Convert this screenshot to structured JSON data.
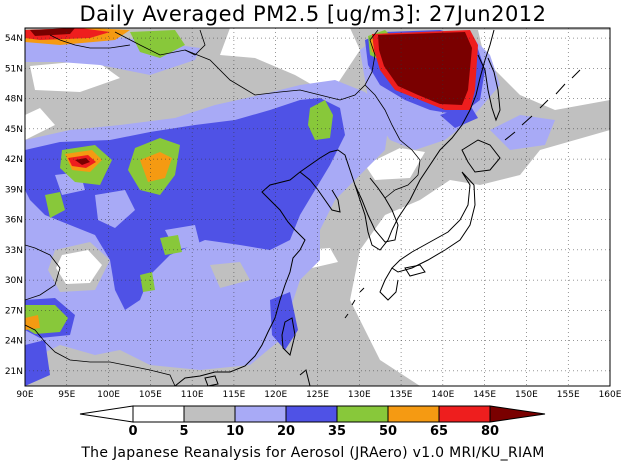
{
  "title": "Daily Averaged PM2.5 [ug/m3]: 27Jun2012",
  "footer": "The Japanese Reanalysis for Aerosol (JRAero) v1.0 MRI/KU_RIAM",
  "map": {
    "lon_range": [
      90,
      160
    ],
    "lat_range": [
      19.5,
      55
    ],
    "lon_ticks": [
      "90E",
      "95E",
      "100E",
      "105E",
      "110E",
      "115E",
      "120E",
      "125E",
      "130E",
      "135E",
      "140E",
      "145E",
      "150E",
      "155E",
      "160E"
    ],
    "lat_ticks": [
      "21N",
      "24N",
      "27N",
      "30N",
      "33N",
      "36N",
      "39N",
      "42N",
      "45N",
      "48N",
      "51N",
      "54N"
    ],
    "grid": true
  },
  "colorbar": {
    "levels": [
      "0",
      "5",
      "10",
      "20",
      "35",
      "50",
      "65",
      "80"
    ],
    "colors": [
      "#ffffff",
      "#c0c0c0",
      "#a8aaf6",
      "#4f52e6",
      "#88c83a",
      "#f59a12",
      "#ee1e1e",
      "#7a0000"
    ]
  }
}
